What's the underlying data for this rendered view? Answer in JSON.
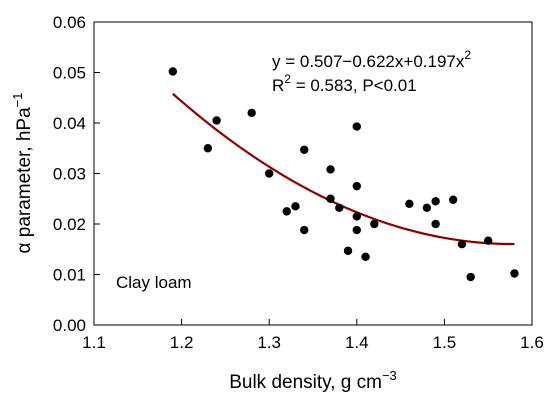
{
  "chart_data": {
    "type": "scatter",
    "title": "",
    "xlabel_main": "Bulk density, g cm",
    "xlabel_sup": "−3",
    "ylabel_main": "α parameter, hPa",
    "ylabel_sup": "−1",
    "xlim": [
      1.1,
      1.6
    ],
    "ylim": [
      0.0,
      0.06
    ],
    "xticks": [
      1.1,
      1.2,
      1.3,
      1.4,
      1.5,
      1.6
    ],
    "xtick_labels": [
      "1.1",
      "1.2",
      "1.3",
      "1.4",
      "1.5",
      "1.6"
    ],
    "yticks": [
      0.0,
      0.01,
      0.02,
      0.03,
      0.04,
      0.05,
      0.06
    ],
    "ytick_labels": [
      "0.00",
      "0.01",
      "0.02",
      "0.03",
      "0.04",
      "0.05",
      "0.06"
    ],
    "grid": false,
    "points": [
      {
        "x": 1.19,
        "y": 0.0502
      },
      {
        "x": 1.23,
        "y": 0.035
      },
      {
        "x": 1.24,
        "y": 0.0405
      },
      {
        "x": 1.28,
        "y": 0.042
      },
      {
        "x": 1.3,
        "y": 0.03
      },
      {
        "x": 1.32,
        "y": 0.0225
      },
      {
        "x": 1.33,
        "y": 0.0235
      },
      {
        "x": 1.34,
        "y": 0.0347
      },
      {
        "x": 1.34,
        "y": 0.0188
      },
      {
        "x": 1.37,
        "y": 0.0308
      },
      {
        "x": 1.37,
        "y": 0.025
      },
      {
        "x": 1.38,
        "y": 0.0232
      },
      {
        "x": 1.39,
        "y": 0.0147
      },
      {
        "x": 1.4,
        "y": 0.0393
      },
      {
        "x": 1.4,
        "y": 0.0275
      },
      {
        "x": 1.4,
        "y": 0.0215
      },
      {
        "x": 1.4,
        "y": 0.0188
      },
      {
        "x": 1.41,
        "y": 0.0135
      },
      {
        "x": 1.42,
        "y": 0.02
      },
      {
        "x": 1.46,
        "y": 0.024
      },
      {
        "x": 1.48,
        "y": 0.0232
      },
      {
        "x": 1.49,
        "y": 0.0245
      },
      {
        "x": 1.49,
        "y": 0.02
      },
      {
        "x": 1.51,
        "y": 0.0248
      },
      {
        "x": 1.52,
        "y": 0.016
      },
      {
        "x": 1.53,
        "y": 0.0095
      },
      {
        "x": 1.55,
        "y": 0.0167
      },
      {
        "x": 1.58,
        "y": 0.0102
      }
    ],
    "fit": {
      "a": 0.507,
      "b": -0.622,
      "c": 0.197,
      "x_from": 1.19,
      "x_to": 1.58,
      "color": "#8b0000"
    },
    "marker_color": "#000000",
    "equation_prefix": "y = 0.507−0.622x+0.197x",
    "equation_sup": "2",
    "r2_prefix": "R",
    "r2_sup": "2",
    "r2_suffix": " = 0.583, P<0.01",
    "annotation": "Clay loam"
  }
}
